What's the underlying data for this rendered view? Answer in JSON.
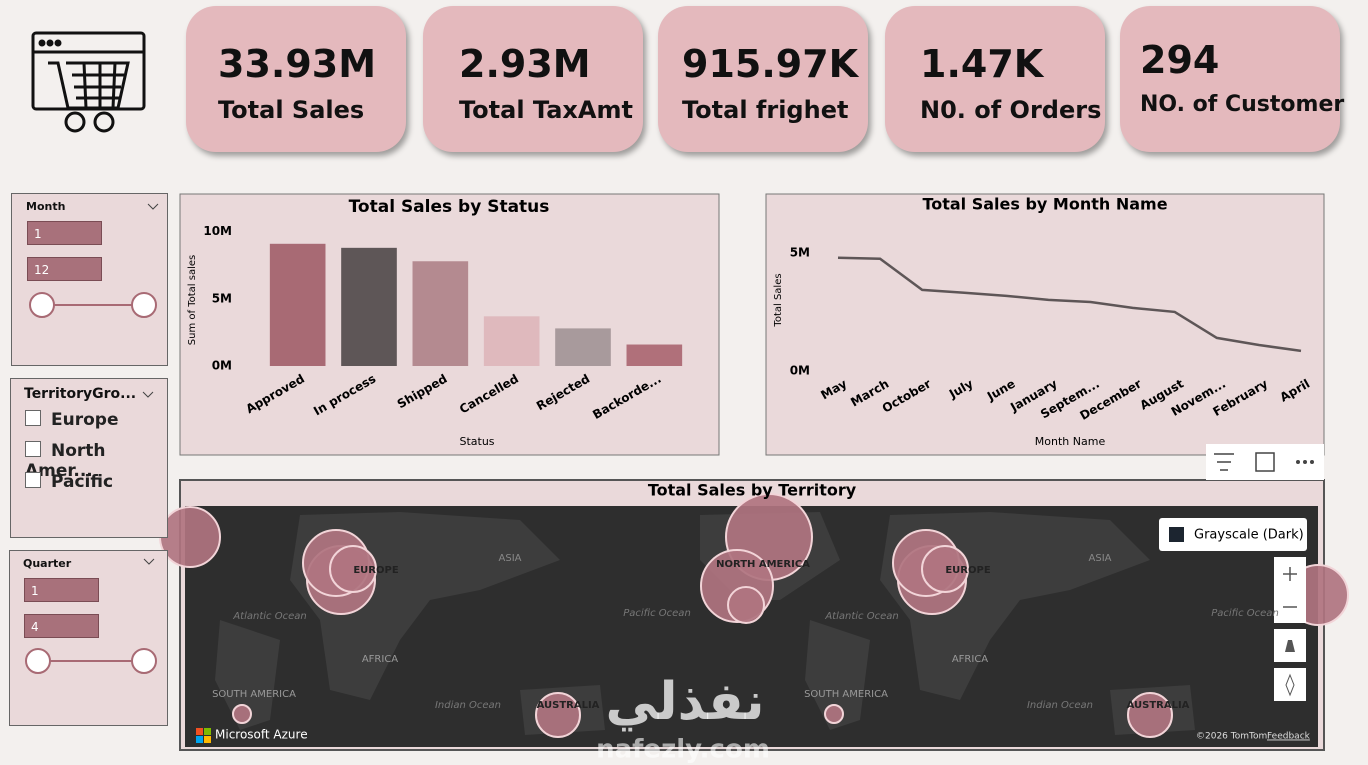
{
  "header": {
    "cards": [
      {
        "value": "33.93M",
        "label": "Total Sales"
      },
      {
        "value": "2.93M",
        "label": "Total TaxAmt"
      },
      {
        "value": "915.97K",
        "label": "Total frighet"
      },
      {
        "value": "1.47K",
        "label": "N0. of Orders"
      },
      {
        "value": "294",
        "label": "NO. of Customer"
      }
    ]
  },
  "slicers": {
    "month": {
      "title": "Month",
      "from": "1",
      "to": "12"
    },
    "territory": {
      "title": "TerritoryGro...",
      "options": [
        "Europe",
        "North Amer...",
        "Pacific"
      ]
    },
    "quarter": {
      "title": "Quarter",
      "from": "1",
      "to": "4"
    }
  },
  "chart_data": [
    {
      "type": "bar",
      "title": "Total Sales by Status",
      "x_label": "Status",
      "y_label": "Sum of Total sales",
      "categories": [
        "Approved",
        "In process",
        "Shipped",
        "Cancelled",
        "Rejected",
        "Backorde..."
      ],
      "values": [
        9.1,
        8.8,
        7.8,
        3.7,
        2.8,
        1.6
      ],
      "colors": [
        "#a86a74",
        "#5e5657",
        "#b48a90",
        "#dfb9bd",
        "#a89a9c",
        "#b0707a"
      ],
      "ylim": [
        0,
        10.5
      ],
      "yticks": [
        {
          "value": 0,
          "label": "0M"
        },
        {
          "value": 5,
          "label": "5M"
        },
        {
          "value": 10,
          "label": "10M"
        }
      ]
    },
    {
      "type": "line",
      "title": "Total Sales by Month Name",
      "x_label": "Month Name",
      "y_label": "Total Sales",
      "categories": [
        "May",
        "March",
        "October",
        "July",
        "June",
        "January",
        "Septem...",
        "December",
        "August",
        "Novem...",
        "February",
        "April"
      ],
      "values": [
        4.79,
        4.75,
        3.43,
        3.31,
        3.18,
        3.01,
        2.92,
        2.67,
        2.5,
        1.4,
        1.1,
        0.85
      ],
      "color": "#5e5657",
      "ylim": [
        0,
        5.5
      ],
      "yticks": [
        {
          "value": 0,
          "label": "0M"
        },
        {
          "value": 5,
          "label": "5M"
        }
      ]
    }
  ],
  "map": {
    "title": "Total Sales by Territory",
    "style": "Grayscale (Dark)",
    "labels": [
      "EUROPE",
      "ASIA",
      "NORTH AMERICA",
      "EUROPE",
      "ASIA",
      "Atlantic Ocean",
      "Pacific Ocean",
      "Atlantic Ocean",
      "Pacific Ocean",
      "AFRICA",
      "AFRICA",
      "SOUTH AMERICA",
      "SOUTH AMERICA",
      "Indian Ocean",
      "Indian Ocean",
      "AUSTRALIA",
      "AUSTRALIA"
    ],
    "brand": "Microsoft Azure",
    "copyright": "©2026 TomTom",
    "feedback": "Feedback"
  },
  "watermark": {
    "arabic": "نفذلي",
    "latin": "nafezly.com"
  }
}
